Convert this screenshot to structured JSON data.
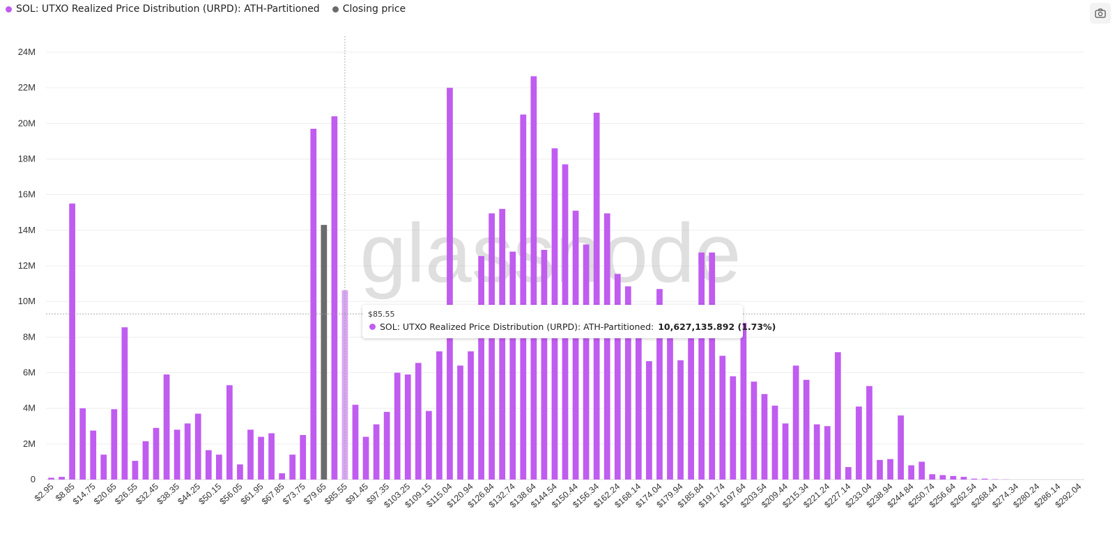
{
  "legend": [
    {
      "label": "SOL: UTXO Realized Price Distribution (URPD): ATH-Partitioned",
      "color": "#c05cf0"
    },
    {
      "label": "Closing price",
      "color": "#6b6b6b"
    }
  ],
  "toolbar": {
    "screenshot_icon": "camera-icon"
  },
  "watermark": "glassnode",
  "tooltip": {
    "title": "$85.55",
    "series_label": "SOL: UTXO Realized Price Distribution (URPD): ATH-Partitioned:",
    "value": "10,627,135.892 (1.73%)"
  },
  "colors": {
    "bar": "#c05cf0",
    "closing": "#6b6b6b",
    "highlight": "#d9a6f2"
  },
  "chart_data": {
    "type": "bar",
    "x_tick_labels": [
      "$2.95",
      "$8.85",
      "$14.75",
      "$20.65",
      "$26.55",
      "$32.45",
      "$38.35",
      "$44.25",
      "$50.15",
      "$56.05",
      "$61.95",
      "$67.85",
      "$73.75",
      "$79.65",
      "$85.55",
      "$91.45",
      "$97.35",
      "$103.25",
      "$109.15",
      "$115.04",
      "$120.94",
      "$126.84",
      "$132.74",
      "$138.64",
      "$144.54",
      "$150.44",
      "$156.34",
      "$162.24",
      "$168.14",
      "$174.04",
      "$179.94",
      "$185.84",
      "$191.74",
      "$197.64",
      "$203.54",
      "$209.44",
      "$215.34",
      "$221.24",
      "$227.14",
      "$233.04",
      "$238.94",
      "$244.84",
      "$250.74",
      "$256.64",
      "$262.54",
      "$268.44",
      "$274.34",
      "$280.24",
      "$286.14",
      "$292.04"
    ],
    "y_tick_labels": [
      "0",
      "2M",
      "4M",
      "6M",
      "8M",
      "10M",
      "12M",
      "14M",
      "16M",
      "18M",
      "20M",
      "22M",
      "24M"
    ],
    "ylim": [
      0,
      24000000
    ],
    "values": [
      0.1,
      0.15,
      15.5,
      4.0,
      2.75,
      1.4,
      3.95,
      8.55,
      1.05,
      2.15,
      2.9,
      5.9,
      2.8,
      3.15,
      3.7,
      1.65,
      1.4,
      5.3,
      0.85,
      2.8,
      2.4,
      2.6,
      0.35,
      1.4,
      2.5,
      19.7,
      14.3,
      20.4,
      10.63,
      4.2,
      2.4,
      3.1,
      3.8,
      6.0,
      5.9,
      6.55,
      3.85,
      7.2,
      22.0,
      6.4,
      7.2,
      12.55,
      14.95,
      15.2,
      12.8,
      20.5,
      22.65,
      12.9,
      18.6,
      17.7,
      15.1,
      13.2,
      20.6,
      14.95,
      11.55,
      10.85,
      8.5,
      6.65,
      10.7,
      8.5,
      6.7,
      8.5,
      12.75,
      12.75,
      6.95,
      5.8,
      8.8,
      5.5,
      4.8,
      4.15,
      3.15,
      6.4,
      5.6,
      3.1,
      3.0,
      7.15,
      0.7,
      4.1,
      5.25,
      1.1,
      1.15,
      3.6,
      0.8,
      1.0,
      0.3,
      0.25,
      0.2,
      0.15,
      0.05,
      0.05,
      0.02,
      0.01,
      0,
      0,
      0,
      0,
      0,
      0,
      0
    ],
    "value_unit": "M",
    "closing_price_index": 26,
    "highlight_index": 28,
    "crosshair_y": 9300000,
    "grid": true
  }
}
